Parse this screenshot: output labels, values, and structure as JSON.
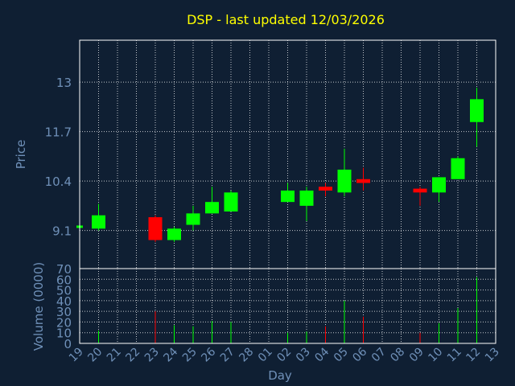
{
  "colors": {
    "background": "#0f1f33",
    "axis": "#ffffff",
    "grid": "#ffffff",
    "label": "#6f90b8",
    "title": "#ffff00",
    "up": "#00ff00",
    "down": "#ff0000"
  },
  "chart_data": {
    "type": "candlestick",
    "title": "DSP - last updated 12/03/2026",
    "xlabel": "Day",
    "price_panel": {
      "ylabel": "Price",
      "ylim": [
        8.1,
        14.1
      ],
      "yticks": [
        9.1,
        10.4,
        11.7,
        13
      ],
      "ytick_labels": [
        "9.1",
        "10.4",
        "11.7",
        "13"
      ]
    },
    "volume_panel": {
      "ylabel": "Volume (0000)",
      "ylim": [
        0,
        70
      ],
      "yticks": [
        0,
        10,
        20,
        30,
        40,
        50,
        60,
        70
      ],
      "ytick_labels": [
        "0",
        "10",
        "20",
        "30",
        "40",
        "50",
        "60",
        "70"
      ]
    },
    "days": [
      "19",
      "20",
      "21",
      "22",
      "23",
      "24",
      "25",
      "26",
      "27",
      "28",
      "01",
      "02",
      "03",
      "04",
      "05",
      "06",
      "07",
      "08",
      "09",
      "10",
      "11",
      "12",
      "13"
    ],
    "candles": [
      {
        "day": "19",
        "open": 9.2,
        "close": 9.2,
        "high": 9.2,
        "low": 9.2,
        "volume": 0
      },
      {
        "day": "20",
        "open": 9.15,
        "close": 9.5,
        "high": 9.8,
        "low": 9.1,
        "volume": 12
      },
      {
        "day": "23",
        "open": 9.45,
        "close": 8.85,
        "high": 9.5,
        "low": 8.8,
        "volume": 30
      },
      {
        "day": "24",
        "open": 8.85,
        "close": 9.15,
        "high": 9.2,
        "low": 8.8,
        "volume": 17
      },
      {
        "day": "25",
        "open": 9.25,
        "close": 9.55,
        "high": 9.75,
        "low": 9.1,
        "volume": 16
      },
      {
        "day": "26",
        "open": 9.55,
        "close": 9.85,
        "high": 10.25,
        "low": 9.55,
        "volume": 21
      },
      {
        "day": "27",
        "open": 9.6,
        "close": 10.1,
        "high": 10.15,
        "low": 9.6,
        "volume": 20
      },
      {
        "day": "02",
        "open": 9.85,
        "close": 10.15,
        "high": 10.35,
        "low": 9.85,
        "volume": 10
      },
      {
        "day": "03",
        "open": 9.75,
        "close": 10.15,
        "high": 10.25,
        "low": 9.35,
        "volume": 11
      },
      {
        "day": "04",
        "open": 10.25,
        "close": 10.15,
        "high": 10.35,
        "low": 10.0,
        "volume": 16
      },
      {
        "day": "05",
        "open": 10.1,
        "close": 10.7,
        "high": 11.25,
        "low": 10.0,
        "volume": 40
      },
      {
        "day": "06",
        "open": 10.45,
        "close": 10.35,
        "high": 10.75,
        "low": 10.15,
        "volume": 25
      },
      {
        "day": "09",
        "open": 10.2,
        "close": 10.1,
        "high": 10.25,
        "low": 9.75,
        "volume": 10
      },
      {
        "day": "10",
        "open": 10.1,
        "close": 10.5,
        "high": 10.5,
        "low": 9.85,
        "volume": 19
      },
      {
        "day": "11",
        "open": 10.45,
        "close": 11.0,
        "high": 11.05,
        "low": 10.45,
        "volume": 33
      },
      {
        "day": "12",
        "open": 11.95,
        "close": 12.55,
        "high": 12.85,
        "low": 11.3,
        "volume": 62
      }
    ]
  }
}
